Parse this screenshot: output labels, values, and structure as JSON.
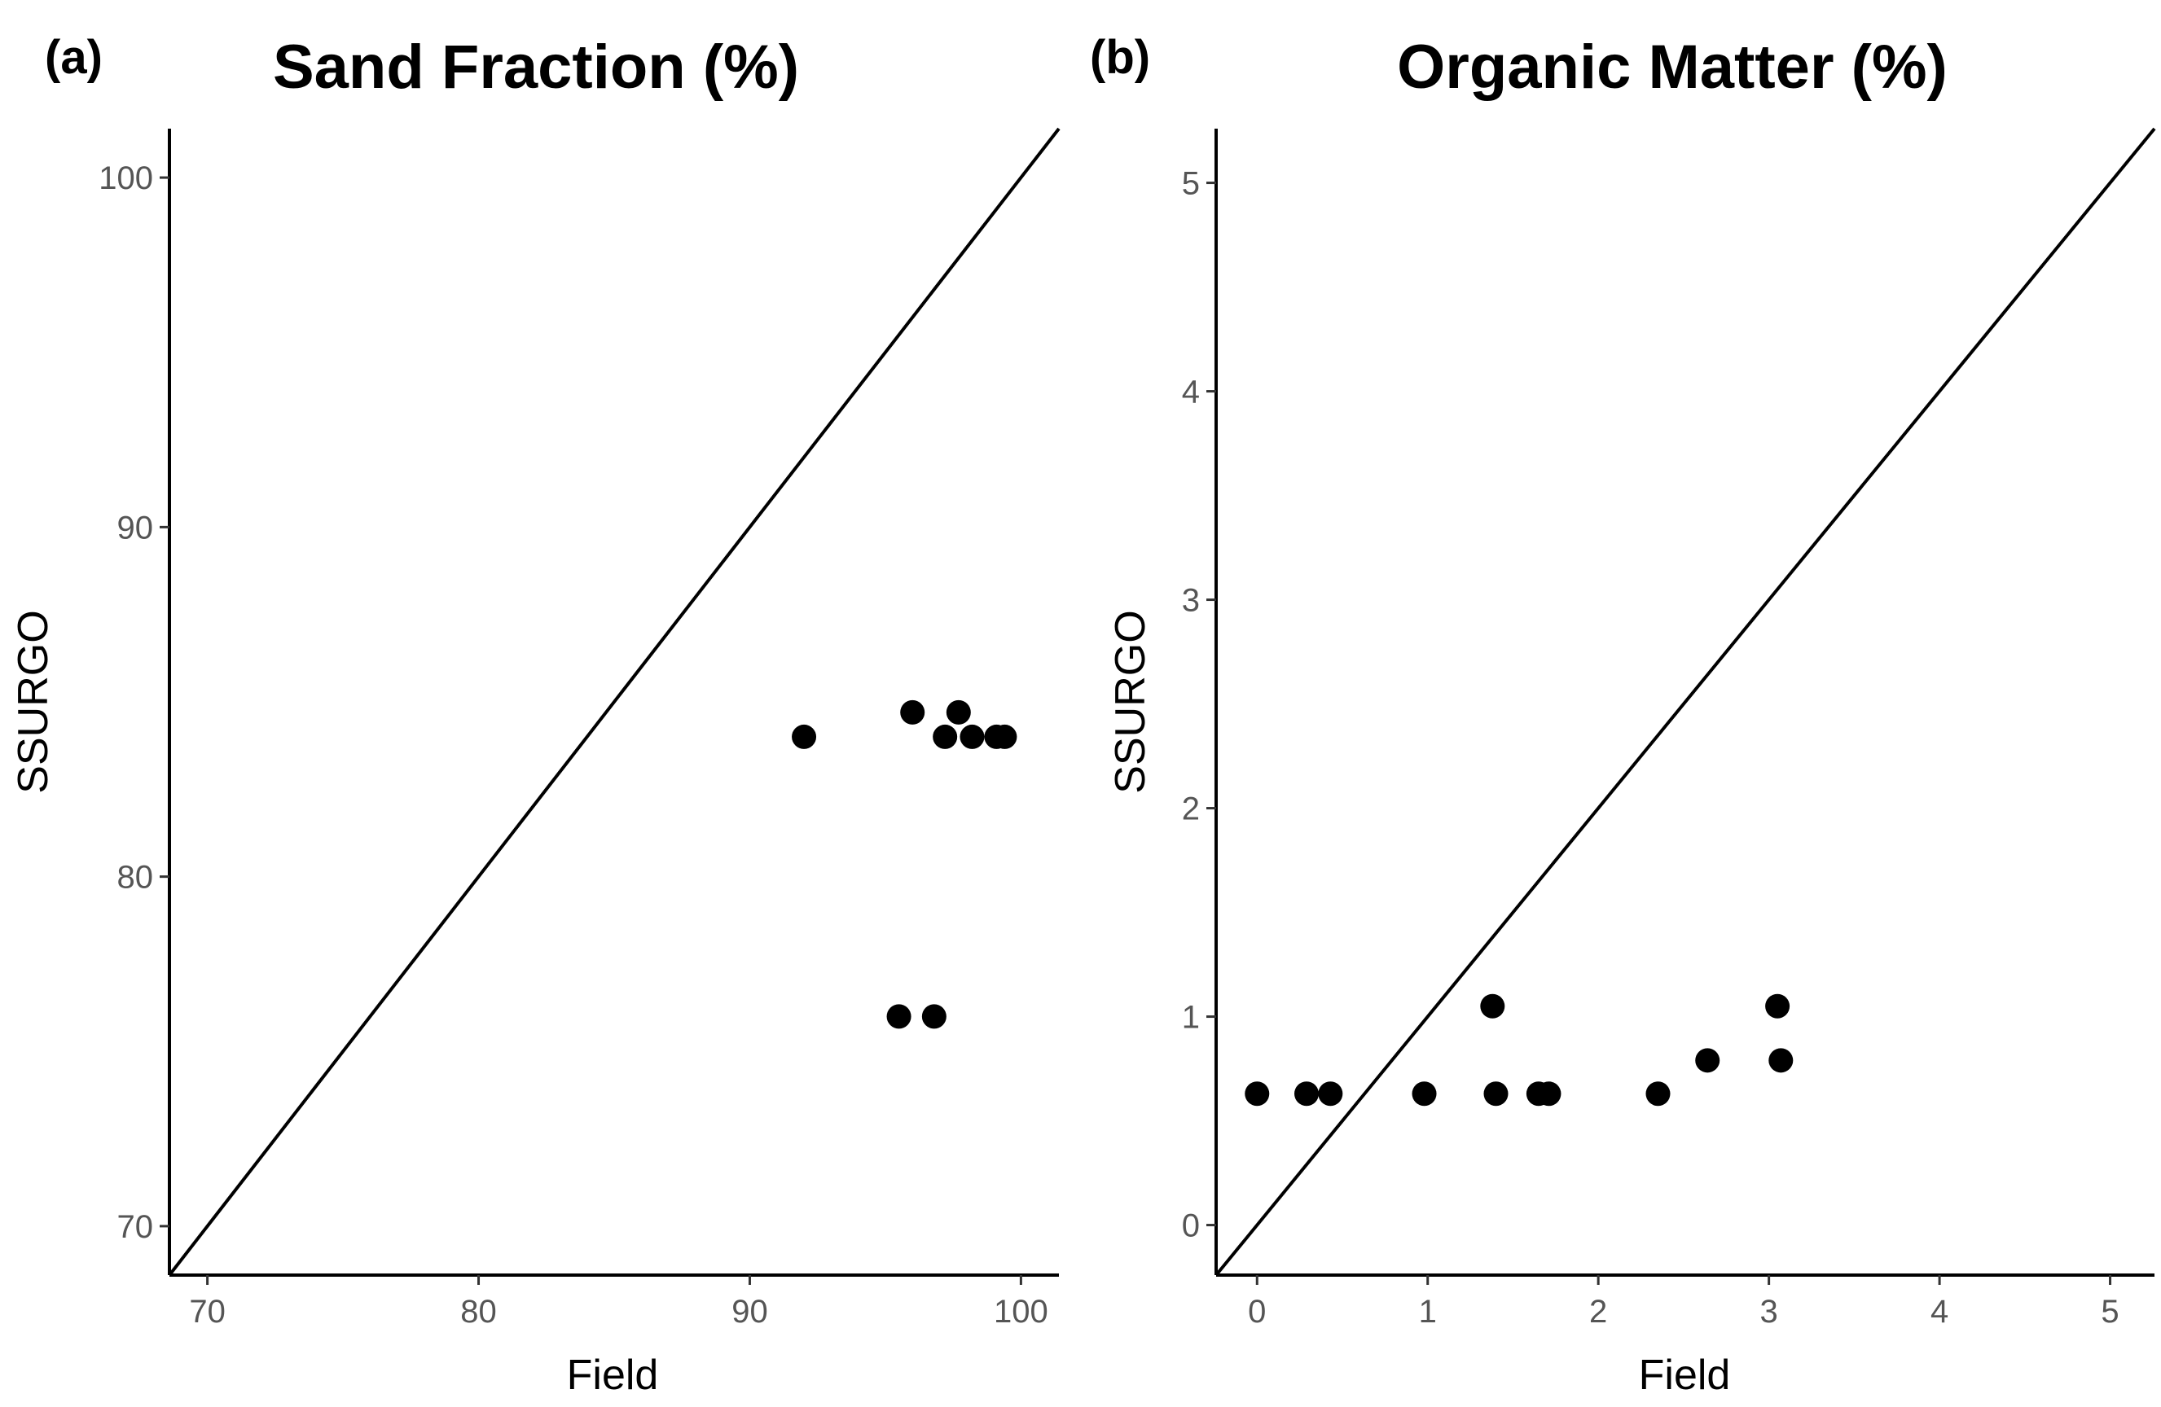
{
  "chart_data": [
    {
      "type": "scatter",
      "panel_label": "(a)",
      "title": "Sand Fraction (%)",
      "xlabel": "Field",
      "ylabel": "SSURGO",
      "xlim": [
        68.6,
        101.4
      ],
      "ylim": [
        68.6,
        101.4
      ],
      "xticks": [
        70,
        80,
        90,
        100
      ],
      "yticks": [
        70,
        80,
        90,
        100
      ],
      "grid": false,
      "reference_line": "y = x",
      "points": [
        {
          "x": 92.0,
          "y": 84.0
        },
        {
          "x": 96.0,
          "y": 84.7
        },
        {
          "x": 97.7,
          "y": 84.7
        },
        {
          "x": 97.2,
          "y": 84.0
        },
        {
          "x": 98.2,
          "y": 84.0
        },
        {
          "x": 99.1,
          "y": 84.0
        },
        {
          "x": 99.4,
          "y": 84.0
        },
        {
          "x": 95.5,
          "y": 76.0
        },
        {
          "x": 96.8,
          "y": 76.0
        }
      ]
    },
    {
      "type": "scatter",
      "panel_label": "(b)",
      "title": "Organic Matter (%)",
      "xlabel": "Field",
      "ylabel": "SSURGO",
      "xlim": [
        -0.24,
        5.26
      ],
      "ylim": [
        -0.24,
        5.26
      ],
      "xticks": [
        0,
        1,
        2,
        3,
        4,
        5
      ],
      "yticks": [
        0,
        1,
        2,
        3,
        4,
        5
      ],
      "grid": false,
      "reference_line": "y = x",
      "points": [
        {
          "x": 0.0,
          "y": 0.63
        },
        {
          "x": 0.29,
          "y": 0.63
        },
        {
          "x": 0.43,
          "y": 0.63
        },
        {
          "x": 0.98,
          "y": 0.63
        },
        {
          "x": 1.4,
          "y": 0.63
        },
        {
          "x": 1.65,
          "y": 0.63
        },
        {
          "x": 1.71,
          "y": 0.63
        },
        {
          "x": 2.35,
          "y": 0.63
        },
        {
          "x": 1.38,
          "y": 1.05
        },
        {
          "x": 2.64,
          "y": 0.79
        },
        {
          "x": 3.05,
          "y": 1.05
        },
        {
          "x": 3.07,
          "y": 0.79
        }
      ]
    }
  ]
}
